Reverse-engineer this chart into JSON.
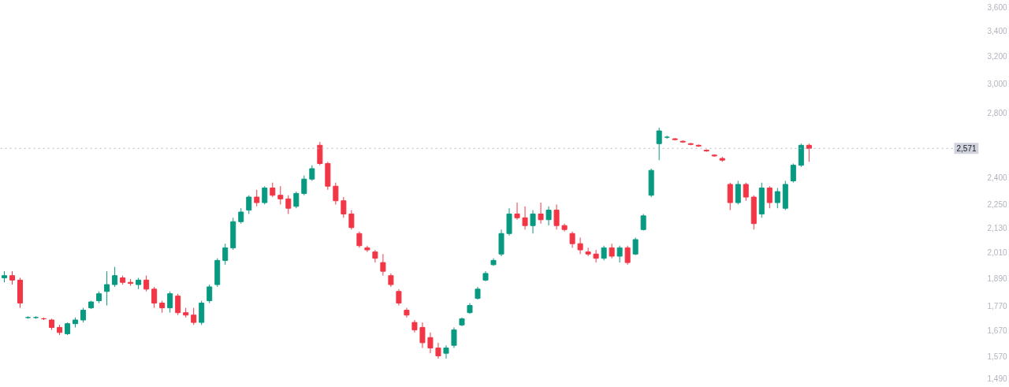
{
  "chart_data": {
    "type": "candlestick",
    "log": "y",
    "categories": [
      null,
      null,
      null,
      null,
      null,
      null,
      null,
      null,
      null,
      null,
      null,
      null,
      null,
      null,
      null,
      null,
      null,
      null,
      null,
      null,
      null,
      null,
      null,
      null,
      null,
      null,
      null,
      null,
      null,
      null,
      null,
      null,
      null,
      null,
      null,
      null,
      null,
      null,
      null,
      null,
      null,
      null,
      null,
      null,
      null,
      null,
      null,
      null,
      null,
      null,
      null,
      null,
      null,
      null,
      null,
      null,
      null,
      null,
      null,
      null,
      null,
      null,
      null,
      null,
      null,
      null,
      null,
      null,
      null,
      null,
      null,
      null,
      null,
      null,
      null,
      null,
      null,
      null,
      null,
      null,
      null,
      null,
      null,
      null,
      null,
      null,
      null,
      null,
      null,
      null,
      null,
      null,
      null,
      null,
      null,
      null,
      null,
      null,
      null,
      null,
      null,
      null,
      null,
      null,
      null,
      null,
      null,
      null,
      null,
      null,
      null,
      null,
      null,
      null,
      null,
      null,
      null,
      null,
      null,
      null,
      null,
      null,
      null,
      null
    ],
    "ohlc": [
      [
        1890,
        1920,
        1870,
        1900
      ],
      [
        1900,
        1920,
        1860,
        1880
      ],
      [
        1880,
        1890,
        1760,
        1780
      ],
      [
        1720,
        1725,
        1715,
        1720
      ],
      [
        1720,
        1725,
        1715,
        1720
      ],
      [
        1715,
        1720,
        1710,
        1715
      ],
      [
        1710,
        1715,
        1670,
        1680
      ],
      [
        1680,
        1690,
        1650,
        1660
      ],
      [
        1655,
        1700,
        1650,
        1695
      ],
      [
        1695,
        1720,
        1680,
        1710
      ],
      [
        1710,
        1760,
        1700,
        1750
      ],
      [
        1760,
        1790,
        1755,
        1785
      ],
      [
        1790,
        1830,
        1780,
        1820
      ],
      [
        1830,
        1920,
        1770,
        1860
      ],
      [
        1860,
        1940,
        1850,
        1900
      ],
      [
        1890,
        1900,
        1860,
        1870
      ],
      [
        1870,
        1885,
        1855,
        1865
      ],
      [
        1860,
        1890,
        1840,
        1880
      ],
      [
        1880,
        1900,
        1830,
        1840
      ],
      [
        1840,
        1850,
        1760,
        1780
      ],
      [
        1780,
        1790,
        1740,
        1760
      ],
      [
        1760,
        1830,
        1740,
        1820
      ],
      [
        1810,
        1820,
        1730,
        1740
      ],
      [
        1740,
        1760,
        1720,
        1730
      ],
      [
        1730,
        1760,
        1690,
        1700
      ],
      [
        1700,
        1790,
        1690,
        1780
      ],
      [
        1790,
        1860,
        1780,
        1850
      ],
      [
        1860,
        1980,
        1850,
        1970
      ],
      [
        1970,
        2050,
        1950,
        2030
      ],
      [
        2030,
        2180,
        2020,
        2160
      ],
      [
        2160,
        2230,
        2150,
        2210
      ],
      [
        2220,
        2300,
        2200,
        2290
      ],
      [
        2290,
        2330,
        2240,
        2260
      ],
      [
        2260,
        2350,
        2250,
        2340
      ],
      [
        2340,
        2370,
        2290,
        2300
      ],
      [
        2300,
        2350,
        2250,
        2280
      ],
      [
        2280,
        2300,
        2200,
        2230
      ],
      [
        2240,
        2320,
        2230,
        2310
      ],
      [
        2310,
        2410,
        2300,
        2390
      ],
      [
        2390,
        2470,
        2380,
        2450
      ],
      [
        2590,
        2610,
        2470,
        2480
      ],
      [
        2480,
        2490,
        2330,
        2350
      ],
      [
        2350,
        2370,
        2250,
        2270
      ],
      [
        2270,
        2290,
        2180,
        2200
      ],
      [
        2200,
        2220,
        2120,
        2130
      ],
      [
        2100,
        2110,
        2030,
        2040
      ],
      [
        2030,
        2040,
        2010,
        2020
      ],
      [
        2010,
        2020,
        1960,
        1980
      ],
      [
        1960,
        2000,
        1900,
        1920
      ],
      [
        1900,
        1910,
        1850,
        1860
      ],
      [
        1830,
        1840,
        1770,
        1780
      ],
      [
        1750,
        1760,
        1720,
        1730
      ],
      [
        1700,
        1710,
        1660,
        1670
      ],
      [
        1680,
        1700,
        1600,
        1620
      ],
      [
        1640,
        1660,
        1580,
        1600
      ],
      [
        1600,
        1620,
        1560,
        1570
      ],
      [
        1580,
        1610,
        1560,
        1600
      ],
      [
        1610,
        1680,
        1600,
        1670
      ],
      [
        1690,
        1720,
        1685,
        1715
      ],
      [
        1740,
        1780,
        1735,
        1770
      ],
      [
        1800,
        1850,
        1795,
        1840
      ],
      [
        1880,
        1920,
        1875,
        1910
      ],
      [
        1950,
        1980,
        1945,
        1970
      ],
      [
        2000,
        2120,
        1990,
        2100
      ],
      [
        2100,
        2230,
        2090,
        2200
      ],
      [
        2200,
        2260,
        2170,
        2180
      ],
      [
        2180,
        2240,
        2120,
        2140
      ],
      [
        2140,
        2220,
        2100,
        2200
      ],
      [
        2200,
        2260,
        2150,
        2170
      ],
      [
        2170,
        2240,
        2140,
        2220
      ],
      [
        2220,
        2250,
        2120,
        2140
      ],
      [
        2140,
        2150,
        2110,
        2120
      ],
      [
        2100,
        2110,
        2030,
        2050
      ],
      [
        2050,
        2080,
        2000,
        2020
      ],
      [
        2010,
        2030,
        1990,
        2000
      ],
      [
        2000,
        2020,
        1960,
        1980
      ],
      [
        1980,
        2040,
        1970,
        2030
      ],
      [
        2030,
        2050,
        1980,
        1990
      ],
      [
        1990,
        2040,
        1960,
        2030
      ],
      [
        2030,
        2040,
        1950,
        1960
      ],
      [
        2000,
        2080,
        1995,
        2070
      ],
      [
        2120,
        2200,
        2115,
        2190
      ],
      [
        2300,
        2450,
        2290,
        2440
      ],
      [
        2600,
        2700,
        2500,
        2680
      ],
      [
        2640,
        2650,
        2630,
        2640
      ],
      [
        2630,
        2635,
        2620,
        2625
      ],
      [
        2615,
        2620,
        2605,
        2610
      ],
      [
        2600,
        2605,
        2590,
        2595
      ],
      [
        2590,
        2595,
        2580,
        2585
      ],
      [
        2560,
        2565,
        2550,
        2555
      ],
      [
        2530,
        2535,
        2520,
        2525
      ],
      [
        2510,
        2520,
        2490,
        2500
      ],
      [
        2360,
        2370,
        2220,
        2260
      ],
      [
        2260,
        2380,
        2250,
        2360
      ],
      [
        2360,
        2370,
        2270,
        2290
      ],
      [
        2290,
        2300,
        2120,
        2150
      ],
      [
        2200,
        2370,
        2180,
        2340
      ],
      [
        2340,
        2350,
        2230,
        2260
      ],
      [
        2260,
        2340,
        2230,
        2320
      ],
      [
        2230,
        2380,
        2220,
        2360
      ],
      [
        2380,
        2480,
        2370,
        2470
      ],
      [
        2470,
        2600,
        2460,
        2590
      ],
      [
        2590,
        2600,
        2490,
        2571
      ],
      null,
      null,
      null,
      null,
      null,
      null,
      null,
      null,
      null,
      null,
      null,
      null,
      null,
      null,
      null,
      null,
      null,
      null,
      null,
      null,
      null
    ],
    "colors": [
      "#089981",
      "#f23645",
      "#f23645",
      "#089981",
      "#089981",
      "#f23645",
      "#f23645",
      "#f23645",
      "#089981",
      "#089981",
      "#089981",
      "#089981",
      "#089981",
      "#089981",
      "#089981",
      "#f23645",
      "#f23645",
      "#089981",
      "#f23645",
      "#f23645",
      "#f23645",
      "#089981",
      "#f23645",
      "#f23645",
      "#f23645",
      "#089981",
      "#089981",
      "#089981",
      "#089981",
      "#089981",
      "#089981",
      "#089981",
      "#f23645",
      "#089981",
      "#f23645",
      "#f23645",
      "#f23645",
      "#089981",
      "#089981",
      "#089981",
      "#f23645",
      "#f23645",
      "#f23645",
      "#f23645",
      "#f23645",
      "#f23645",
      "#f23645",
      "#f23645",
      "#f23645",
      "#f23645",
      "#f23645",
      "#f23645",
      "#f23645",
      "#f23645",
      "#f23645",
      "#f23645",
      "#089981",
      "#089981",
      "#089981",
      "#089981",
      "#089981",
      "#089981",
      "#089981",
      "#089981",
      "#089981",
      "#f23645",
      "#f23645",
      "#089981",
      "#f23645",
      "#089981",
      "#f23645",
      "#f23645",
      "#f23645",
      "#f23645",
      "#f23645",
      "#f23645",
      "#089981",
      "#f23645",
      "#089981",
      "#f23645",
      "#089981",
      "#089981",
      "#089981",
      "#089981",
      "#089981",
      "#f23645",
      "#f23645",
      "#f23645",
      "#f23645",
      "#f23645",
      "#f23645",
      "#f23645",
      "#f23645",
      "#089981",
      "#f23645",
      "#f23645",
      "#089981",
      "#f23645",
      "#089981",
      "#089981",
      "#089981",
      "#089981",
      "#f23645",
      null,
      null,
      null,
      null,
      null,
      null,
      null,
      null,
      null,
      null,
      null,
      null,
      null,
      null,
      null,
      null,
      null,
      null,
      null,
      null,
      null
    ],
    "ylim": [
      1490,
      3600
    ],
    "yticks": [
      {
        "value": 1490,
        "label": "1,490"
      },
      {
        "value": 1570,
        "label": "1,570"
      },
      {
        "value": 1670,
        "label": "1,670"
      },
      {
        "value": 1770,
        "label": "1,770"
      },
      {
        "value": 1890,
        "label": "1,890"
      },
      {
        "value": 2010,
        "label": "2,010"
      },
      {
        "value": 2130,
        "label": "2,130"
      },
      {
        "value": 2250,
        "label": "2,250"
      },
      {
        "value": 2400,
        "label": "2,400"
      },
      {
        "value": 2800,
        "label": "2,800"
      },
      {
        "value": 3000,
        "label": "3,000"
      },
      {
        "value": 3200,
        "label": "3,200"
      },
      {
        "value": 3400,
        "label": "3,400"
      },
      {
        "value": 3600,
        "label": "3,600"
      }
    ],
    "ref_lines": [
      {
        "axis": "y",
        "value": 2571,
        "label": "2,571",
        "color": "#b2b5be",
        "line_style": "dotted"
      }
    ],
    "grid": false,
    "tick_labels": "y"
  }
}
